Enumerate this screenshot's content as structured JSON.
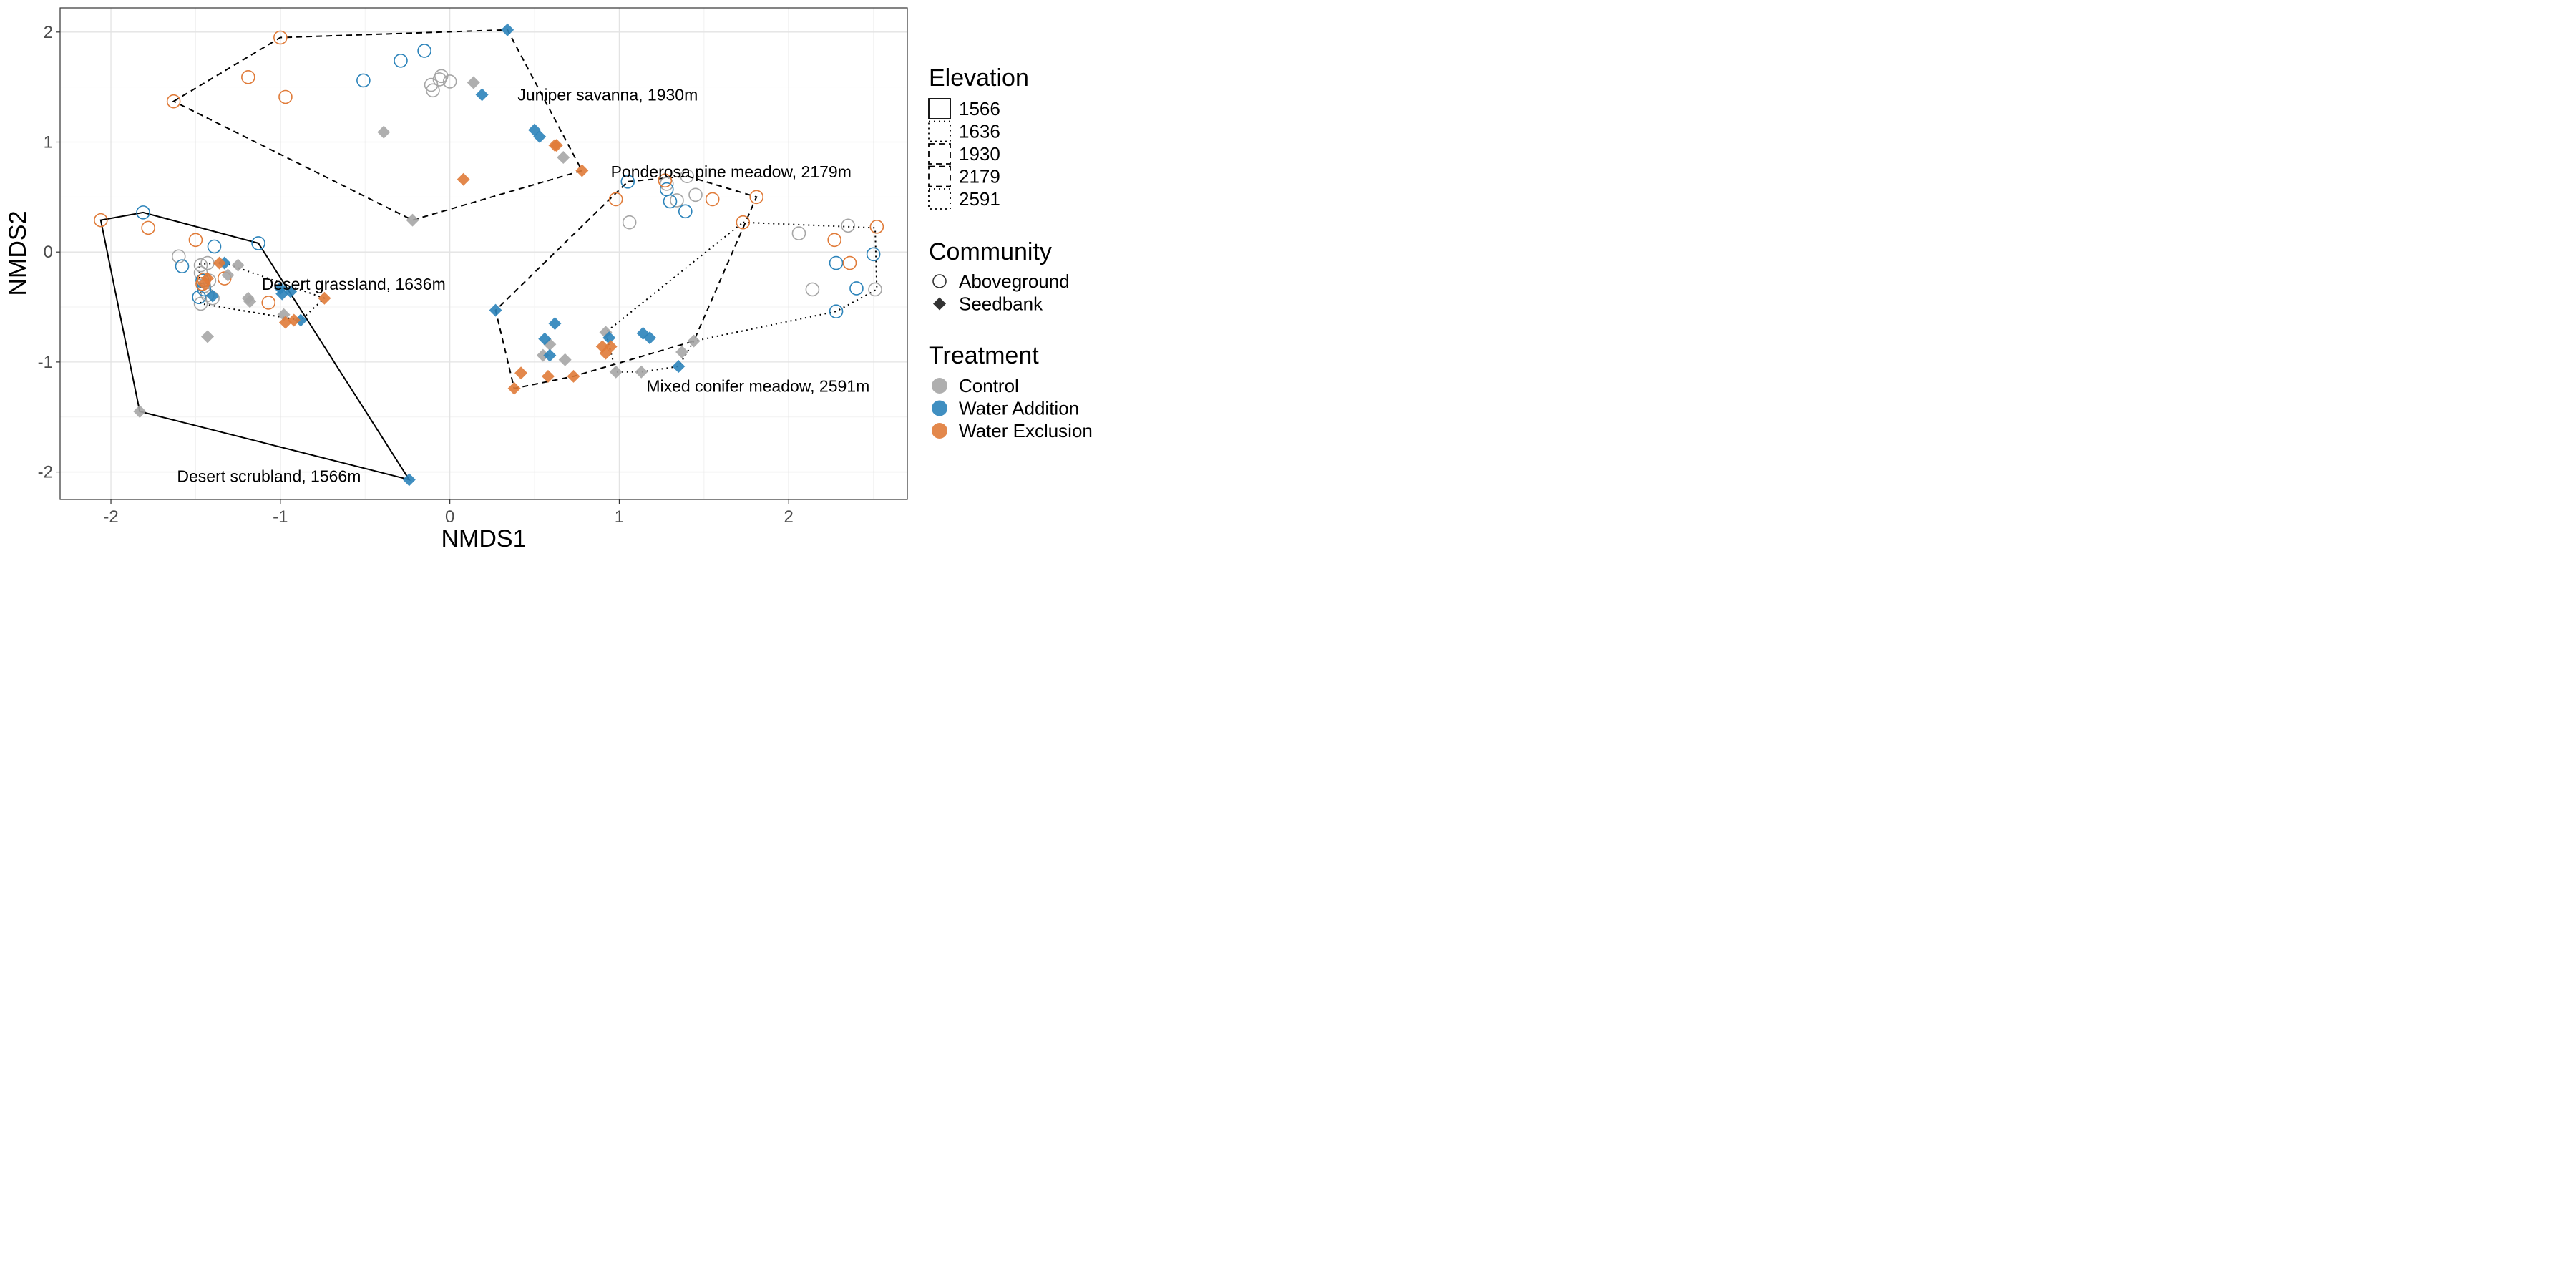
{
  "chart_data": {
    "type": "scatter",
    "xlabel": "NMDS1",
    "ylabel": "NMDS2",
    "xlim": [
      -2.3,
      2.7
    ],
    "ylim": [
      -2.25,
      2.22
    ],
    "x_ticks": [
      -2,
      -1,
      0,
      1,
      2
    ],
    "y_ticks": [
      -2,
      -1,
      0,
      1,
      2
    ],
    "grid": true,
    "colors": {
      "Control": "#a6a6a6",
      "Water Addition": "#2b83ba",
      "Water Exclusion": "#e07b39"
    },
    "annotations": [
      {
        "text": "Juniper savanna, 1930m",
        "x": 0.4,
        "y": 1.43
      },
      {
        "text": "Ponderosa pine meadow, 2179m",
        "x": 0.95,
        "y": 0.73
      },
      {
        "text": "Desert grassland, 1636m",
        "x": -1.11,
        "y": -0.29
      },
      {
        "text": "Mixed conifer meadow, 2591m",
        "x": 1.16,
        "y": -1.22
      },
      {
        "text": "Desert scrubland, 1566m",
        "x": -1.61,
        "y": -2.04
      }
    ],
    "hulls": [
      {
        "elevation": "1566",
        "dash": "solid",
        "points": [
          [
            -2.06,
            0.29
          ],
          [
            -1.81,
            0.36
          ],
          [
            -1.13,
            0.08
          ],
          [
            -0.24,
            -2.07
          ],
          [
            -1.83,
            -1.45
          ]
        ]
      },
      {
        "elevation": "1636",
        "dash": "dotted",
        "points": [
          [
            -1.48,
            -0.11
          ],
          [
            -1.33,
            -0.1
          ],
          [
            -0.74,
            -0.42
          ],
          [
            -0.88,
            -0.62
          ],
          [
            -1.47,
            -0.47
          ]
        ]
      },
      {
        "elevation": "1930",
        "dash": "dashed",
        "points": [
          [
            -1.63,
            1.37
          ],
          [
            -1.0,
            1.95
          ],
          [
            0.34,
            2.02
          ],
          [
            0.78,
            0.74
          ],
          [
            -0.22,
            0.29
          ]
        ]
      },
      {
        "elevation": "2179",
        "dash": "dashed",
        "points": [
          [
            1.05,
            0.64
          ],
          [
            1.4,
            0.69
          ],
          [
            1.81,
            0.5
          ],
          [
            1.44,
            -0.81
          ],
          [
            0.73,
            -1.13
          ],
          [
            0.38,
            -1.24
          ],
          [
            0.27,
            -0.53
          ]
        ]
      },
      {
        "elevation": "2591",
        "dash": "dotted",
        "points": [
          [
            1.73,
            0.27
          ],
          [
            2.51,
            0.22
          ],
          [
            2.52,
            -0.34
          ],
          [
            2.28,
            -0.54
          ],
          [
            1.44,
            -0.81
          ],
          [
            1.35,
            -1.04
          ],
          [
            1.13,
            -1.09
          ],
          [
            0.98,
            -1.09
          ],
          [
            0.92,
            -0.73
          ]
        ]
      }
    ],
    "series": [
      {
        "community": "Aboveground",
        "treatment": "Control",
        "points": [
          [
            -0.11,
            1.52
          ],
          [
            -0.05,
            1.6
          ],
          [
            0.0,
            1.55
          ],
          [
            -0.06,
            1.57
          ],
          [
            -0.1,
            1.47
          ],
          [
            -1.6,
            -0.04
          ],
          [
            -1.47,
            -0.12
          ],
          [
            -1.43,
            -0.1
          ],
          [
            -1.47,
            -0.19
          ],
          [
            -1.42,
            -0.26
          ],
          [
            -1.45,
            -0.31
          ],
          [
            -1.43,
            -0.39
          ],
          [
            -1.4,
            -0.42
          ],
          [
            -1.47,
            -0.47
          ],
          [
            1.06,
            0.27
          ],
          [
            1.4,
            0.69
          ],
          [
            1.34,
            0.47
          ],
          [
            1.28,
            0.62
          ],
          [
            1.45,
            0.52
          ],
          [
            2.06,
            0.17
          ],
          [
            2.35,
            0.24
          ],
          [
            2.51,
            -0.34
          ],
          [
            2.14,
            -0.34
          ]
        ]
      },
      {
        "community": "Aboveground",
        "treatment": "Water Addition",
        "points": [
          [
            -0.51,
            1.56
          ],
          [
            -0.29,
            1.74
          ],
          [
            -0.15,
            1.83
          ],
          [
            -1.81,
            0.36
          ],
          [
            -1.13,
            0.08
          ],
          [
            -1.39,
            0.05
          ],
          [
            -1.58,
            -0.13
          ],
          [
            -1.46,
            -0.26
          ],
          [
            -1.45,
            -0.34
          ],
          [
            -1.48,
            -0.41
          ],
          [
            1.05,
            0.64
          ],
          [
            1.28,
            0.57
          ],
          [
            1.3,
            0.46
          ],
          [
            1.39,
            0.37
          ],
          [
            2.28,
            -0.1
          ],
          [
            2.5,
            -0.02
          ],
          [
            2.4,
            -0.33
          ],
          [
            2.28,
            -0.54
          ]
        ]
      },
      {
        "community": "Aboveground",
        "treatment": "Water Exclusion",
        "points": [
          [
            -1.0,
            1.95
          ],
          [
            -1.63,
            1.37
          ],
          [
            -1.19,
            1.59
          ],
          [
            -0.97,
            1.41
          ],
          [
            -2.06,
            0.29
          ],
          [
            -1.78,
            0.22
          ],
          [
            -1.5,
            0.11
          ],
          [
            -1.45,
            -0.25
          ],
          [
            -1.33,
            -0.24
          ],
          [
            -1.46,
            -0.29
          ],
          [
            -1.07,
            -0.46
          ],
          [
            0.98,
            0.48
          ],
          [
            1.27,
            0.65
          ],
          [
            1.55,
            0.48
          ],
          [
            1.81,
            0.5
          ],
          [
            1.73,
            0.27
          ],
          [
            2.27,
            0.11
          ],
          [
            2.52,
            0.23
          ],
          [
            2.36,
            -0.1
          ]
        ]
      },
      {
        "community": "Seedbank",
        "treatment": "Control",
        "points": [
          [
            0.14,
            1.54
          ],
          [
            -0.39,
            1.09
          ],
          [
            0.67,
            0.86
          ],
          [
            -0.22,
            0.29
          ],
          [
            -1.25,
            -0.12
          ],
          [
            -1.31,
            -0.21
          ],
          [
            -1.19,
            -0.42
          ],
          [
            -1.18,
            -0.45
          ],
          [
            -1.43,
            -0.77
          ],
          [
            -0.98,
            -0.57
          ],
          [
            -1.83,
            -1.45
          ],
          [
            0.59,
            -0.84
          ],
          [
            0.55,
            -0.94
          ],
          [
            0.68,
            -0.98
          ],
          [
            0.92,
            -0.73
          ],
          [
            1.37,
            -0.91
          ],
          [
            1.44,
            -0.81
          ],
          [
            0.98,
            -1.09
          ],
          [
            1.13,
            -1.09
          ]
        ]
      },
      {
        "community": "Seedbank",
        "treatment": "Water Addition",
        "points": [
          [
            0.34,
            2.02
          ],
          [
            0.19,
            1.43
          ],
          [
            0.5,
            1.11
          ],
          [
            0.53,
            1.05
          ],
          [
            -1.33,
            -0.1
          ],
          [
            -1.0,
            -0.33
          ],
          [
            -0.94,
            -0.36
          ],
          [
            -1.4,
            -0.4
          ],
          [
            -0.99,
            -0.38
          ],
          [
            -0.88,
            -0.62
          ],
          [
            -0.24,
            -2.07
          ],
          [
            0.27,
            -0.53
          ],
          [
            0.62,
            -0.65
          ],
          [
            0.56,
            -0.79
          ],
          [
            0.59,
            -0.94
          ],
          [
            0.94,
            -0.78
          ],
          [
            1.14,
            -0.74
          ],
          [
            1.18,
            -0.78
          ],
          [
            1.35,
            -1.04
          ]
        ]
      },
      {
        "community": "Seedbank",
        "treatment": "Water Exclusion",
        "points": [
          [
            0.63,
            0.97
          ],
          [
            0.62,
            0.97
          ],
          [
            0.78,
            0.74
          ],
          [
            0.08,
            0.66
          ],
          [
            -1.36,
            -0.1
          ],
          [
            -1.43,
            -0.24
          ],
          [
            -1.45,
            -0.29
          ],
          [
            -0.74,
            -0.42
          ],
          [
            -0.97,
            -0.64
          ],
          [
            -0.92,
            -0.62
          ],
          [
            0.9,
            -0.86
          ],
          [
            0.92,
            -0.92
          ],
          [
            0.95,
            -0.86
          ],
          [
            0.42,
            -1.1
          ],
          [
            0.58,
            -1.13
          ],
          [
            0.73,
            -1.13
          ],
          [
            0.38,
            -1.24
          ]
        ]
      }
    ],
    "legend": {
      "placement": "right",
      "elevation": {
        "title": "Elevation",
        "items": [
          {
            "label": "1566",
            "dash": "solid"
          },
          {
            "label": "1636",
            "dash": "dotted"
          },
          {
            "label": "1930",
            "dash": "dashed"
          },
          {
            "label": "2179",
            "dash": "dashed"
          },
          {
            "label": "2591",
            "dash": "dotted"
          }
        ]
      },
      "community": {
        "title": "Community",
        "items": [
          {
            "label": "Aboveground",
            "shape": "circle"
          },
          {
            "label": "Seedbank",
            "shape": "diamond"
          }
        ]
      },
      "treatment": {
        "title": "Treatment",
        "items": [
          {
            "label": "Control"
          },
          {
            "label": "Water Addition"
          },
          {
            "label": "Water Exclusion"
          }
        ]
      }
    }
  }
}
